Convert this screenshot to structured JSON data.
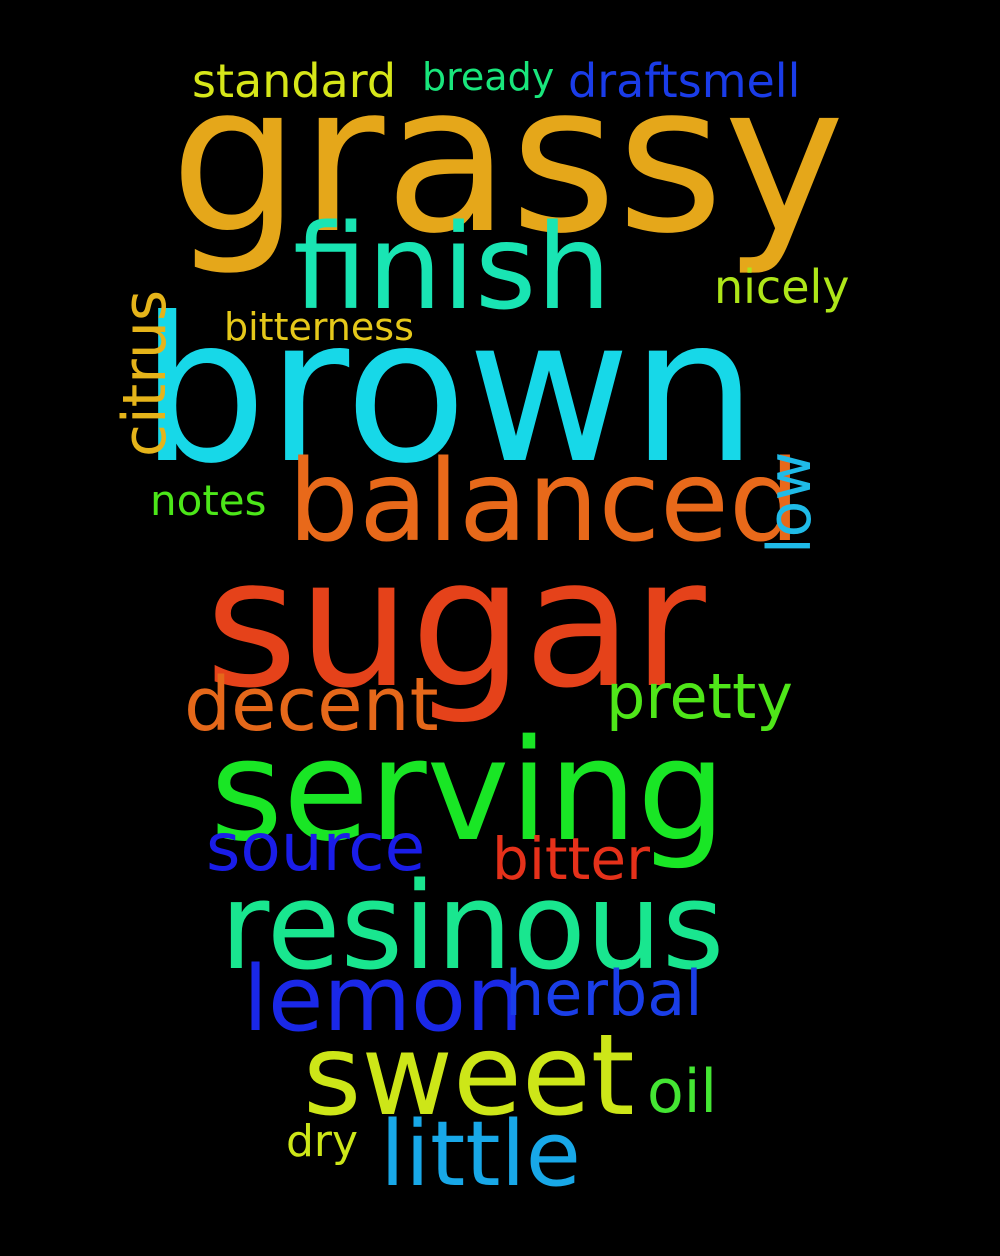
{
  "words": {
    "grassy": {
      "text": "grassy",
      "color": "#e5a71a"
    },
    "brown": {
      "text": "brown",
      "color": "#17d8e8"
    },
    "sugar": {
      "text": "sugar",
      "color": "#e5421a"
    },
    "serving": {
      "text": "serving",
      "color": "#19e625"
    },
    "finish": {
      "text": "finish",
      "color": "#19e5b3"
    },
    "balanced": {
      "text": "balanced",
      "color": "#e8691a"
    },
    "resinous": {
      "text": "resinous",
      "color": "#19e68f"
    },
    "sweet": {
      "text": "sweet",
      "color": "#cde618"
    },
    "little": {
      "text": "little",
      "color": "#18a8e8"
    },
    "lemon": {
      "text": "lemon",
      "color": "#1a28e8"
    },
    "decent": {
      "text": "decent",
      "color": "#e5681a"
    },
    "source": {
      "text": "source",
      "color": "#1a1de8"
    },
    "herbal": {
      "text": "herbal",
      "color": "#1a3ee8"
    },
    "bitter": {
      "text": "bitter",
      "color": "#e5311a"
    },
    "pretty": {
      "text": "pretty",
      "color": "#4fe619"
    },
    "oil": {
      "text": "oil",
      "color": "#44e633"
    },
    "citrus": {
      "text": "citrus",
      "color": "#e5b41a"
    },
    "low": {
      "text": "low",
      "color": "#1fbbe8"
    },
    "nicely": {
      "text": "nicely",
      "color": "#aee619"
    },
    "standard": {
      "text": "standard",
      "color": "#d6e619"
    },
    "draftsmell": {
      "text": "draftsmell",
      "color": "#1a3ce8"
    },
    "bready": {
      "text": "bready",
      "color": "#19e67c"
    },
    "bitterness": {
      "text": "bitterness",
      "color": "#e5c81a"
    },
    "notes": {
      "text": "notes",
      "color": "#4ce619"
    },
    "dry": {
      "text": "dry",
      "color": "#cde618"
    }
  }
}
